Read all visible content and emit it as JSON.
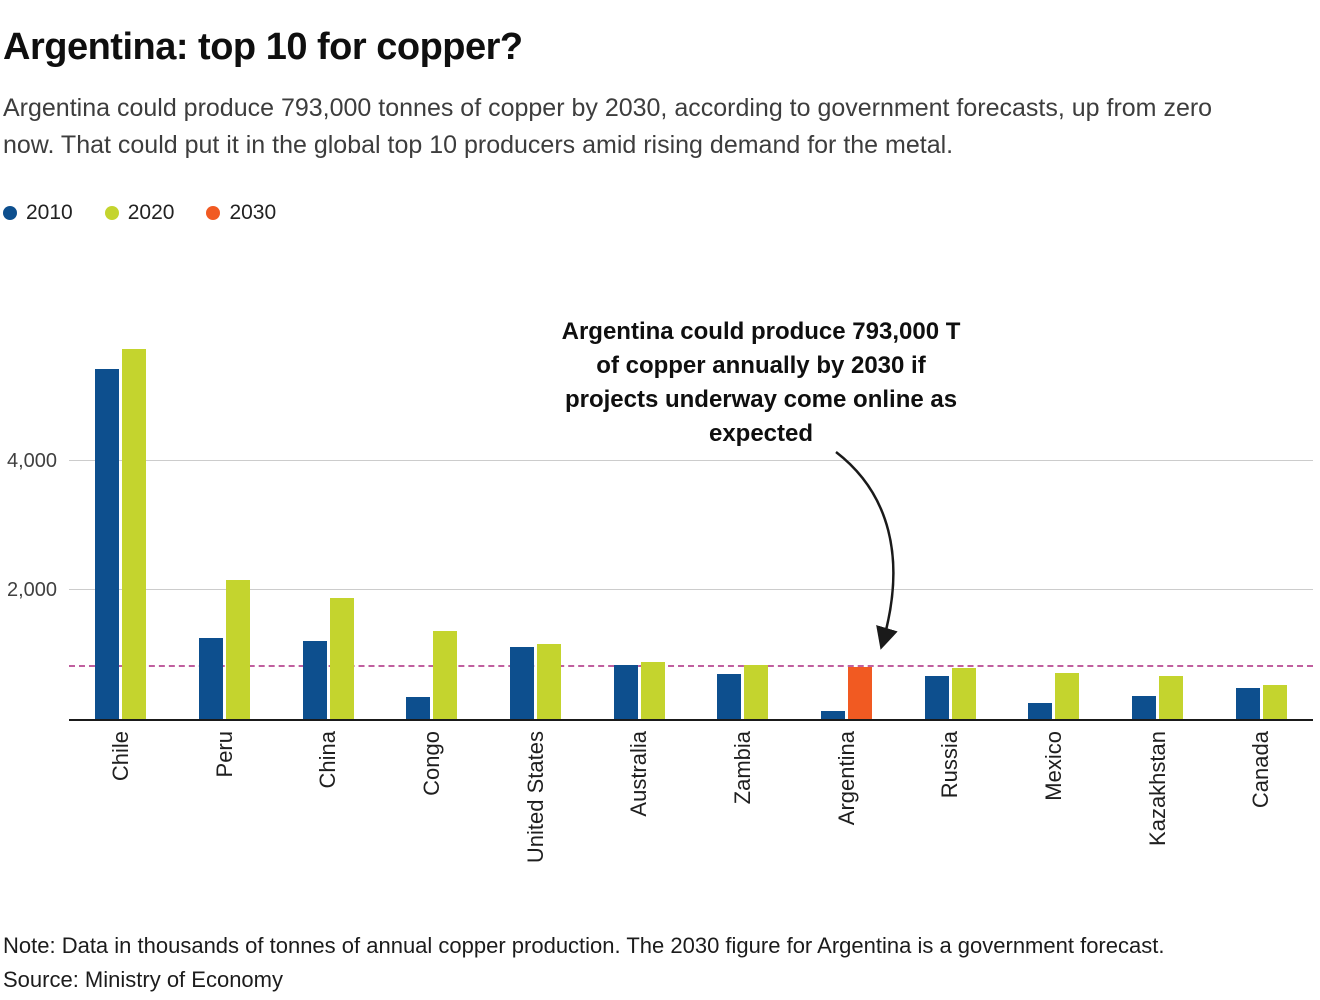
{
  "header": {
    "title": "Argentina: top 10 for copper?",
    "subtitle": "Argentina could produce 793,000 tonnes of copper by 2030, according to government forecasts, up from zero now. That could put it in the global top 10 producers amid rising demand for the metal."
  },
  "legend": [
    {
      "label": "2010",
      "color": "#0d4f8e"
    },
    {
      "label": "2020",
      "color": "#c4d42e"
    },
    {
      "label": "2030",
      "color": "#f15a22"
    }
  ],
  "chart_data": {
    "type": "bar",
    "title": "Argentina: top 10 for copper?",
    "categories": [
      "Chile",
      "Peru",
      "China",
      "Congo",
      "United States",
      "Australia",
      "Zambia",
      "Argentina",
      "Russia",
      "Mexico",
      "Kazakhstan",
      "Canada"
    ],
    "series": [
      {
        "name": "2010",
        "color": "#0d4f8e",
        "values": [
          5420,
          1250,
          1200,
          330,
          1110,
          830,
          690,
          120,
          660,
          240,
          350,
          470
        ]
      },
      {
        "name": "2020",
        "color": "#c4d42e",
        "values": [
          5730,
          2150,
          1870,
          1360,
          1160,
          870,
          830,
          null,
          780,
          700,
          660,
          520
        ]
      },
      {
        "name": "2030",
        "color": "#f15a22",
        "values": [
          null,
          null,
          null,
          null,
          null,
          null,
          null,
          793,
          null,
          null,
          null,
          null
        ]
      }
    ],
    "units": "thousands of tonnes of annual copper production",
    "y_ticks": [
      2000,
      4000
    ],
    "y_tick_labels": [
      "2,000",
      "4,000"
    ],
    "ylim": [
      0,
      6550
    ],
    "grid": true,
    "legend_position": "top-left",
    "reference_line": {
      "value": 793,
      "color": "#c05f9f",
      "style": "dashed",
      "meaning": "Argentina 2030 forecast level"
    }
  },
  "annotation": {
    "lines": [
      "Argentina could produce 793,000 T",
      "of copper annually by 2030 if",
      "projects underway come online as",
      "expected"
    ]
  },
  "footer": {
    "note": "Note: Data in thousands of tonnes of annual copper production. The 2030 figure for Argentina is a government forecast.",
    "source": "Source: Ministry of Economy"
  }
}
